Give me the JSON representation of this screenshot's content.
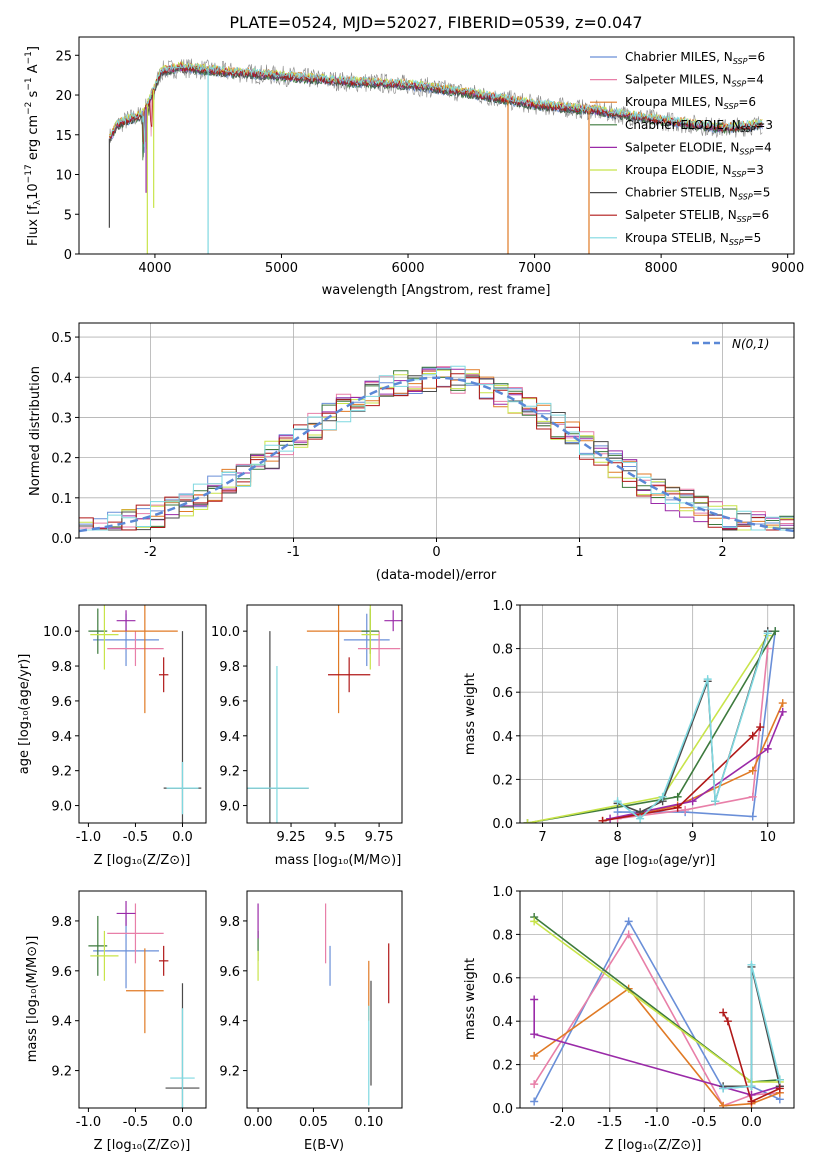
{
  "title": "PLATE=0524, MJD=52027, FIBERID=0539, z=0.047",
  "colors": {
    "Chabrier MILES": "#6a8fd8",
    "Salpeter MILES": "#e87fa8",
    "Kroupa MILES": "#e07a25",
    "Chabrier ELODIE": "#3d7a3d",
    "Salpeter ELODIE": "#9a2aa8",
    "Kroupa ELODIE": "#c8e44a",
    "Chabrier STELIB": "#4a4a4a",
    "Salpeter STELIB": "#b01818",
    "Kroupa STELIB": "#7fd8e0"
  },
  "legend": [
    {
      "label": "Chabrier MILES, N",
      "sub": "SSP",
      "tail": "=6",
      "key": "Chabrier MILES"
    },
    {
      "label": "Salpeter MILES, N",
      "sub": "SSP",
      "tail": "=4",
      "key": "Salpeter MILES"
    },
    {
      "label": "Kroupa MILES, N",
      "sub": "SSP",
      "tail": "=6",
      "key": "Kroupa MILES"
    },
    {
      "label": "Chabrier ELODIE, N",
      "sub": "SSP",
      "tail": "=3",
      "key": "Chabrier ELODIE"
    },
    {
      "label": "Salpeter ELODIE, N",
      "sub": "SSP",
      "tail": "=4",
      "key": "Salpeter ELODIE"
    },
    {
      "label": "Kroupa ELODIE, N",
      "sub": "SSP",
      "tail": "=3",
      "key": "Kroupa ELODIE"
    },
    {
      "label": "Chabrier STELIB, N",
      "sub": "SSP",
      "tail": "=5",
      "key": "Chabrier STELIB"
    },
    {
      "label": "Salpeter STELIB, N",
      "sub": "SSP",
      "tail": "=6",
      "key": "Salpeter STELIB"
    },
    {
      "label": "Kroupa STELIB, N",
      "sub": "SSP",
      "tail": "=5",
      "key": "Kroupa STELIB"
    }
  ],
  "chart_data": [
    {
      "id": "spectrum",
      "type": "line",
      "ylabel": "Flux [f_λ 10^-17 erg cm^-2 s^-1 A^-1]",
      "xlabel": "wavelength [Angstrom, rest frame]",
      "xlim": [
        3400,
        9050
      ],
      "ylim": [
        0,
        27.3
      ],
      "xticks": [
        4000,
        5000,
        6000,
        7000,
        8000,
        9000
      ],
      "yticks": [
        0,
        5,
        10,
        15,
        20,
        25
      ],
      "continuum": [
        [
          3640,
          14.5
        ],
        [
          3700,
          16.2
        ],
        [
          3800,
          17.0
        ],
        [
          3900,
          17.5
        ],
        [
          3960,
          19.5
        ],
        [
          4050,
          23.0
        ],
        [
          4200,
          23.5
        ],
        [
          4500,
          23.0
        ],
        [
          5000,
          22.4
        ],
        [
          5500,
          21.7
        ],
        [
          6000,
          21.3
        ],
        [
          6500,
          20.2
        ],
        [
          7000,
          18.8
        ],
        [
          7500,
          18.0
        ],
        [
          8000,
          16.8
        ],
        [
          8500,
          15.8
        ],
        [
          8800,
          16.3
        ]
      ],
      "features": [
        {
          "x": 3940,
          "y": 0.0,
          "series": "Kroupa ELODIE"
        },
        {
          "x": 4420,
          "y": 0.0,
          "series": "Kroupa STELIB"
        },
        {
          "x": 6790,
          "y": 0.0,
          "series": "Kroupa MILES"
        },
        {
          "x": 7430,
          "y": 0.0,
          "series": "Kroupa MILES"
        },
        {
          "x": 3640,
          "y": 3.3,
          "series": "Chabrier STELIB"
        },
        {
          "x": 3990,
          "y": 5.8,
          "series": "Kroupa ELODIE"
        },
        {
          "x": 3930,
          "y": 7.7,
          "series": "Salpeter ELODIE"
        }
      ]
    },
    {
      "id": "residuals",
      "type": "histogram",
      "xlabel": "(data-model)/error",
      "ylabel": "Normed distribution",
      "xlim": [
        -2.5,
        2.5
      ],
      "ylim": [
        0,
        0.535
      ],
      "xticks": [
        -2,
        -1,
        0,
        1,
        2
      ],
      "yticks": [
        0.0,
        0.1,
        0.2,
        0.3,
        0.4,
        0.5
      ],
      "reference_label": "N(0,1)",
      "bin_width": 0.1
    },
    {
      "id": "age-vs-Z",
      "type": "errorbar",
      "xlabel": "Z [log10(Z/Z⊙)]",
      "ylabel": "age [log10(age/yr)]",
      "xlim": [
        -1.1,
        0.25
      ],
      "ylim": [
        8.9,
        10.15
      ],
      "xticks": [
        -1.0,
        -0.5,
        0.0
      ],
      "yticks": [
        9.0,
        9.2,
        9.4,
        9.6,
        9.8,
        10.0
      ],
      "points": [
        {
          "series": "Chabrier MILES",
          "x": -0.6,
          "xerr": 0.35,
          "y": 9.95,
          "yerr": 0.15
        },
        {
          "series": "Salpeter MILES",
          "x": -0.5,
          "xerr": 0.3,
          "y": 9.9,
          "yerr": 0.1
        },
        {
          "series": "Kroupa MILES",
          "x": -0.4,
          "xerr": 0.35,
          "y": 10.0,
          "yerr": 0.47
        },
        {
          "series": "Chabrier ELODIE",
          "x": -0.9,
          "xerr": 0.1,
          "y": 10.0,
          "yerr": 0.13
        },
        {
          "series": "Salpeter ELODIE",
          "x": -0.6,
          "xerr": 0.1,
          "y": 10.06,
          "yerr": 0.06
        },
        {
          "series": "Kroupa ELODIE",
          "x": -0.83,
          "xerr": 0.15,
          "y": 9.98,
          "yerr": 0.2
        },
        {
          "series": "Chabrier STELIB",
          "x": 0.0,
          "xerr": 0.2,
          "y": 9.1,
          "yerr": 0.9
        },
        {
          "series": "Salpeter STELIB",
          "x": -0.2,
          "xerr": 0.05,
          "y": 9.75,
          "yerr": 0.1
        },
        {
          "series": "Kroupa STELIB",
          "x": 0.0,
          "xerr": 0.17,
          "y": 9.1,
          "yerr": 0.15
        }
      ]
    },
    {
      "id": "age-vs-mass",
      "type": "errorbar",
      "xlabel": "mass [log10(M/M⊙)]",
      "xlim": [
        9.0,
        9.88
      ],
      "ylim": [
        8.9,
        10.15
      ],
      "xticks": [
        9.25,
        9.5,
        9.75
      ],
      "yticks": [
        9.0,
        9.2,
        9.4,
        9.6,
        9.8,
        10.0
      ],
      "points": [
        {
          "series": "Chabrier MILES",
          "x": 9.68,
          "xerr": 0.13,
          "y": 9.95,
          "yerr": 0.15
        },
        {
          "series": "Salpeter MILES",
          "x": 9.75,
          "xerr": 0.12,
          "y": 9.9,
          "yerr": 0.1
        },
        {
          "series": "Kroupa MILES",
          "x": 9.52,
          "xerr": 0.18,
          "y": 10.0,
          "yerr": 0.47
        },
        {
          "series": "Chabrier ELODIE",
          "x": 9.7,
          "xerr": 0.05,
          "y": 10.0,
          "yerr": 0.13
        },
        {
          "series": "Salpeter ELODIE",
          "x": 9.83,
          "xerr": 0.05,
          "y": 10.06,
          "yerr": 0.06
        },
        {
          "series": "Kroupa ELODIE",
          "x": 9.7,
          "xerr": 0.05,
          "y": 9.98,
          "yerr": 0.2
        },
        {
          "series": "Chabrier STELIB",
          "x": 9.13,
          "xerr": 0.22,
          "y": 9.1,
          "yerr": 0.9
        },
        {
          "series": "Salpeter STELIB",
          "x": 9.58,
          "xerr": 0.12,
          "y": 9.75,
          "yerr": 0.1
        },
        {
          "series": "Kroupa STELIB",
          "x": 9.17,
          "xerr": 0.18,
          "y": 9.1,
          "yerr": 0.7
        }
      ]
    },
    {
      "id": "weight-vs-age",
      "type": "line",
      "xlabel": "age [log10(age/yr)]",
      "ylabel": "mass weight",
      "xlim": [
        6.7,
        10.35
      ],
      "ylim": [
        0,
        1.0
      ],
      "xticks": [
        7,
        8,
        9,
        10
      ],
      "yticks": [
        0.0,
        0.2,
        0.4,
        0.6,
        0.8,
        1.0
      ],
      "series": [
        {
          "name": "Chabrier MILES",
          "x": [
            8.0,
            8.9,
            9.8,
            10.1
          ],
          "y": [
            0.05,
            0.05,
            0.03,
            0.88
          ]
        },
        {
          "name": "Salpeter MILES",
          "x": [
            8.0,
            8.9,
            9.8,
            10.0
          ],
          "y": [
            0.02,
            0.06,
            0.12,
            0.8
          ]
        },
        {
          "name": "Kroupa MILES",
          "x": [
            7.8,
            8.8,
            9.8,
            10.2
          ],
          "y": [
            0.01,
            0.08,
            0.24,
            0.55
          ]
        },
        {
          "name": "Chabrier ELODIE",
          "x": [
            6.8,
            8.8,
            10.1
          ],
          "y": [
            0.0,
            0.12,
            0.88
          ]
        },
        {
          "name": "Salpeter ELODIE",
          "x": [
            7.9,
            9.0,
            10.0,
            10.2
          ],
          "y": [
            0.02,
            0.1,
            0.34,
            0.51
          ]
        },
        {
          "name": "Kroupa ELODIE",
          "x": [
            6.8,
            8.6,
            10.0
          ],
          "y": [
            0.0,
            0.12,
            0.86
          ]
        },
        {
          "name": "Chabrier STELIB",
          "x": [
            8.0,
            8.3,
            8.6,
            9.2,
            9.3,
            10.0
          ],
          "y": [
            0.09,
            0.05,
            0.1,
            0.65,
            0.1,
            0.88
          ]
        },
        {
          "name": "Salpeter STELIB",
          "x": [
            7.8,
            8.8,
            9.8,
            9.9
          ],
          "y": [
            0.01,
            0.07,
            0.4,
            0.44
          ]
        },
        {
          "name": "Kroupa STELIB",
          "x": [
            8.0,
            8.3,
            8.6,
            9.2,
            9.3,
            10.0
          ],
          "y": [
            0.1,
            0.02,
            0.12,
            0.66,
            0.1,
            0.87
          ]
        }
      ]
    },
    {
      "id": "mass-vs-Z",
      "type": "errorbar",
      "xlabel": "Z [log10(Z/Z⊙)]",
      "ylabel": "mass [log10(M/M⊙)]",
      "xlim": [
        -1.1,
        0.25
      ],
      "ylim": [
        9.05,
        9.92
      ],
      "xticks": [
        -1.0,
        -0.5,
        0.0
      ],
      "yticks": [
        9.2,
        9.4,
        9.6,
        9.8
      ],
      "points": [
        {
          "series": "Chabrier MILES",
          "x": -0.6,
          "xerr": 0.35,
          "y": 9.68,
          "yerr": 0.15
        },
        {
          "series": "Salpeter MILES",
          "x": -0.5,
          "xerr": 0.3,
          "y": 9.75,
          "yerr": 0.12
        },
        {
          "series": "Kroupa MILES",
          "x": -0.4,
          "xerr": 0.2,
          "y": 9.52,
          "yerr": 0.17
        },
        {
          "series": "Chabrier ELODIE",
          "x": -0.9,
          "xerr": 0.1,
          "y": 9.7,
          "yerr": 0.12
        },
        {
          "series": "Salpeter ELODIE",
          "x": -0.6,
          "xerr": 0.1,
          "y": 9.83,
          "yerr": 0.05
        },
        {
          "series": "Kroupa ELODIE",
          "x": -0.83,
          "xerr": 0.15,
          "y": 9.66,
          "yerr": 0.1
        },
        {
          "series": "Chabrier STELIB",
          "x": 0.0,
          "xerr": 0.18,
          "y": 9.13,
          "yerr": 0.42
        },
        {
          "series": "Salpeter STELIB",
          "x": -0.2,
          "xerr": 0.05,
          "y": 9.64,
          "yerr": 0.06
        },
        {
          "series": "Kroupa STELIB",
          "x": 0.0,
          "xerr": 0.13,
          "y": 9.17,
          "yerr": 0.28
        }
      ]
    },
    {
      "id": "mass-vs-EBV",
      "type": "errorbar",
      "xlabel": "E(B-V)",
      "xlim": [
        -0.01,
        0.13
      ],
      "ylim": [
        9.05,
        9.92
      ],
      "xticks": [
        0.0,
        0.05,
        0.1
      ],
      "yticks": [
        9.2,
        9.4,
        9.6,
        9.8
      ],
      "points": [
        {
          "series": "Chabrier MILES",
          "x": 0.065,
          "xerr": 0.0,
          "y": 9.62,
          "yerr": 0.08
        },
        {
          "series": "Salpeter MILES",
          "x": 0.061,
          "xerr": 0.0,
          "y": 9.75,
          "yerr": 0.12
        },
        {
          "series": "Kroupa MILES",
          "x": 0.1,
          "xerr": 0.0,
          "y": 9.52,
          "yerr": 0.12
        },
        {
          "series": "Chabrier ELODIE",
          "x": 0.0,
          "xerr": 0.0,
          "y": 9.7,
          "yerr": 0.06
        },
        {
          "series": "Salpeter ELODIE",
          "x": 0.0,
          "xerr": 0.0,
          "y": 9.8,
          "yerr": 0.07
        },
        {
          "series": "Kroupa ELODIE",
          "x": 0.0,
          "xerr": 0.0,
          "y": 9.62,
          "yerr": 0.06
        },
        {
          "series": "Chabrier STELIB",
          "x": 0.102,
          "xerr": 0.0,
          "y": 9.35,
          "yerr": 0.21
        },
        {
          "series": "Salpeter STELIB",
          "x": 0.118,
          "xerr": 0.0,
          "y": 9.59,
          "yerr": 0.12
        },
        {
          "series": "Kroupa STELIB",
          "x": 0.1,
          "xerr": 0.0,
          "y": 9.26,
          "yerr": 0.2
        }
      ]
    },
    {
      "id": "weight-vs-Z",
      "type": "line",
      "xlabel": "Z [log10(Z/Z⊙)]",
      "ylabel": "mass weight",
      "xlim": [
        -2.45,
        0.45
      ],
      "ylim": [
        0,
        1.0
      ],
      "xticks": [
        -2.0,
        -1.5,
        -1.0,
        -0.5,
        0.0
      ],
      "yticks": [
        0.0,
        0.2,
        0.4,
        0.6,
        0.8,
        1.0
      ],
      "series": [
        {
          "name": "Chabrier MILES",
          "x": [
            -2.3,
            -1.3,
            -0.3,
            0.0,
            0.3
          ],
          "y": [
            0.03,
            0.86,
            0.09,
            0.1,
            0.04
          ]
        },
        {
          "name": "Salpeter MILES",
          "x": [
            -2.3,
            -1.3,
            -0.3,
            0.0,
            0.3
          ],
          "y": [
            0.11,
            0.8,
            0.01,
            0.06,
            0.07
          ]
        },
        {
          "name": "Kroupa MILES",
          "x": [
            -2.3,
            -1.3,
            -0.3,
            0.0,
            0.3
          ],
          "y": [
            0.24,
            0.55,
            0.01,
            0.02,
            0.07
          ]
        },
        {
          "name": "Chabrier ELODIE",
          "x": [
            -2.3,
            0.0,
            0.3
          ],
          "y": [
            0.88,
            0.12,
            0.13
          ]
        },
        {
          "name": "Salpeter ELODIE",
          "x": [
            -2.3,
            -2.3,
            0.0,
            0.3
          ],
          "y": [
            0.5,
            0.34,
            0.06,
            0.1
          ]
        },
        {
          "name": "Kroupa ELODIE",
          "x": [
            -2.3,
            0.0,
            0.3
          ],
          "y": [
            0.86,
            0.12,
            0.12
          ]
        },
        {
          "name": "Chabrier STELIB",
          "x": [
            -0.3,
            0.0,
            0.0,
            0.3
          ],
          "y": [
            0.1,
            0.1,
            0.65,
            0.1
          ]
        },
        {
          "name": "Salpeter STELIB",
          "x": [
            -0.3,
            -0.25,
            0.0,
            0.3
          ],
          "y": [
            0.44,
            0.4,
            0.03,
            0.09
          ]
        },
        {
          "name": "Kroupa STELIB",
          "x": [
            -0.3,
            0.0,
            0.0,
            0.3
          ],
          "y": [
            0.09,
            0.1,
            0.66,
            0.13
          ]
        }
      ]
    }
  ]
}
